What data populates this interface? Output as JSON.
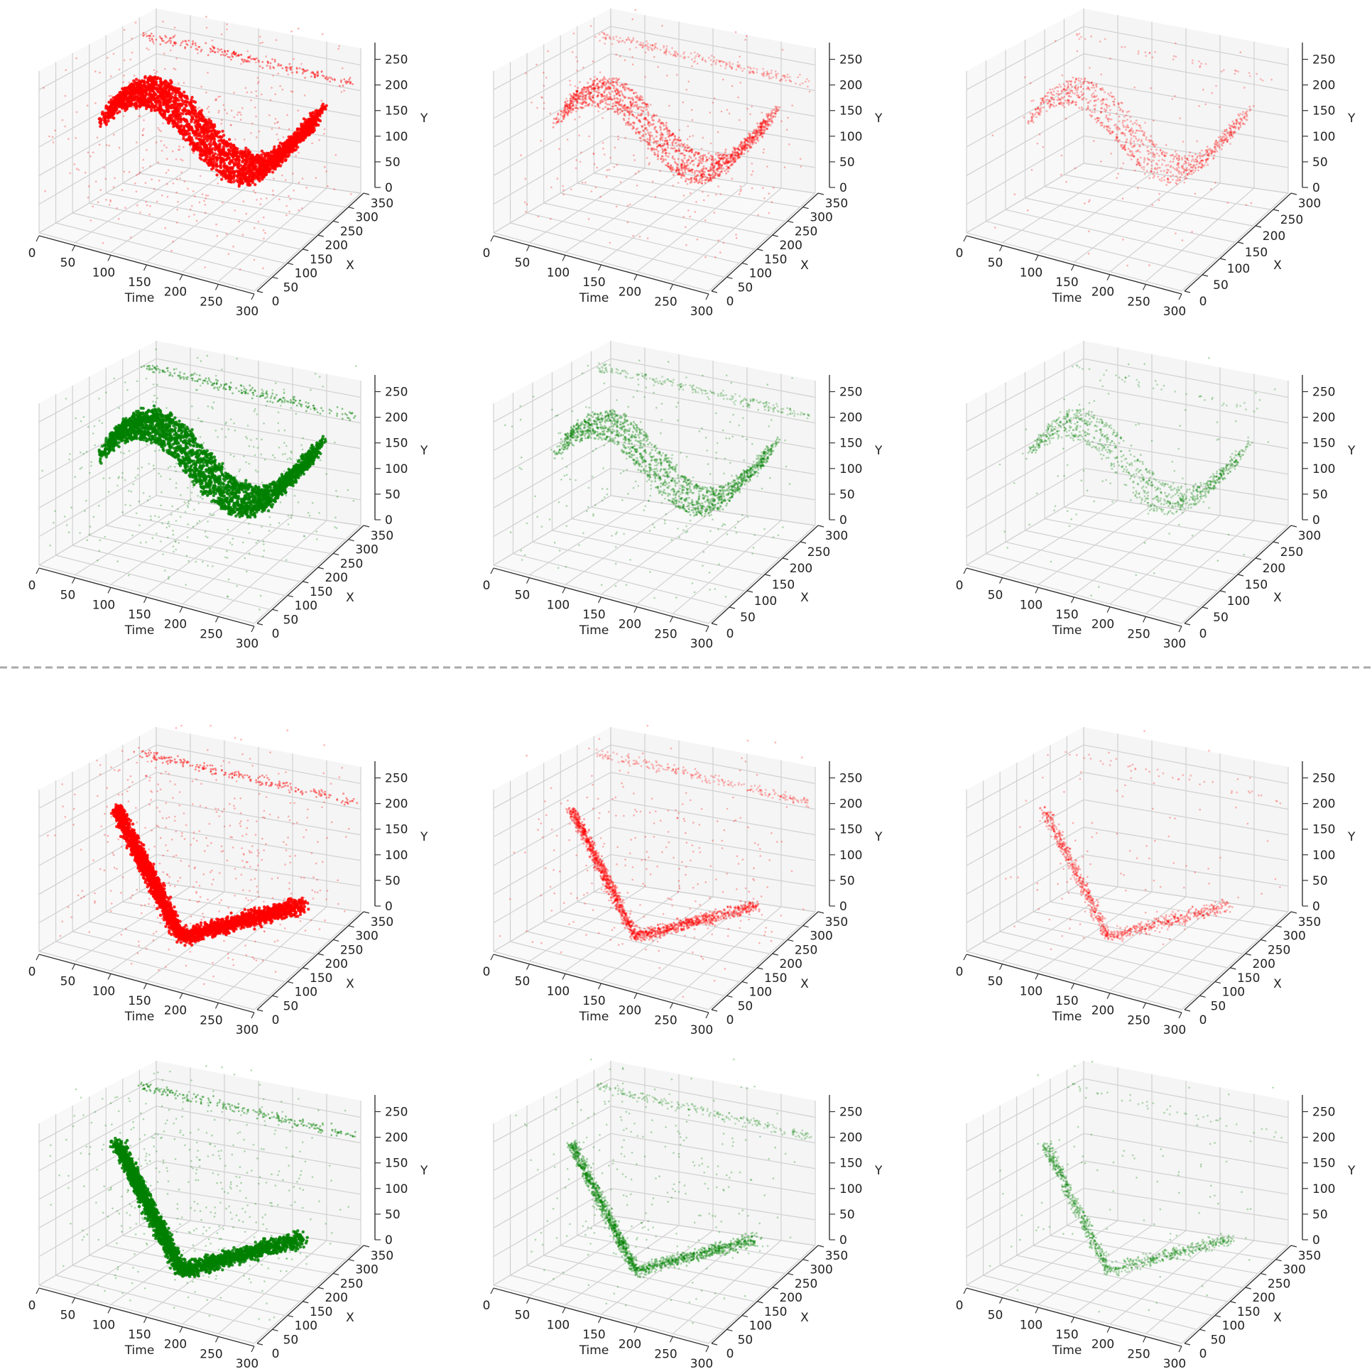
{
  "chart_data": [
    {
      "type": "scatter3d",
      "color": "#ff0000",
      "density": "dense",
      "shape": "wave",
      "xlabel": "Time",
      "ylabel": "X",
      "zlabel": "Y",
      "time_ticks": [
        0,
        50,
        100,
        150,
        200,
        250,
        300
      ],
      "x_ticks": [
        0,
        50,
        100,
        150,
        200,
        250,
        300,
        350
      ],
      "y_ticks": [
        0,
        50,
        100,
        150,
        200,
        250
      ],
      "time_range": [
        0,
        300
      ],
      "x_range": [
        0,
        350
      ],
      "y_range": [
        0,
        260
      ],
      "grid": true
    },
    {
      "type": "scatter3d",
      "color": "#ff0000",
      "density": "medium",
      "shape": "wave",
      "xlabel": "Time",
      "ylabel": "X",
      "zlabel": "Y",
      "time_ticks": [
        0,
        50,
        100,
        150,
        200,
        250,
        300
      ],
      "x_ticks": [
        0,
        50,
        100,
        150,
        200,
        250,
        300,
        350
      ],
      "y_ticks": [
        0,
        50,
        100,
        150,
        200,
        250
      ],
      "time_range": [
        0,
        300
      ],
      "x_range": [
        0,
        350
      ],
      "y_range": [
        0,
        260
      ],
      "grid": true
    },
    {
      "type": "scatter3d",
      "color": "#ff0000",
      "density": "sparse",
      "shape": "wave",
      "xlabel": "Time",
      "ylabel": "X",
      "zlabel": "Y",
      "time_ticks": [
        0,
        50,
        100,
        150,
        200,
        250,
        300
      ],
      "x_ticks": [
        0,
        50,
        100,
        150,
        200,
        250,
        300
      ],
      "y_ticks": [
        0,
        50,
        100,
        150,
        200,
        250
      ],
      "time_range": [
        0,
        300
      ],
      "x_range": [
        0,
        300
      ],
      "y_range": [
        0,
        260
      ],
      "grid": true
    },
    {
      "type": "scatter3d",
      "color": "#008000",
      "density": "dense",
      "shape": "wave",
      "xlabel": "Time",
      "ylabel": "X",
      "zlabel": "Y",
      "time_ticks": [
        0,
        50,
        100,
        150,
        200,
        250,
        300
      ],
      "x_ticks": [
        0,
        50,
        100,
        150,
        200,
        250,
        300,
        350
      ],
      "y_ticks": [
        0,
        50,
        100,
        150,
        200,
        250
      ],
      "time_range": [
        0,
        300
      ],
      "x_range": [
        0,
        350
      ],
      "y_range": [
        0,
        260
      ],
      "grid": true
    },
    {
      "type": "scatter3d",
      "color": "#008000",
      "density": "medium",
      "shape": "wave",
      "xlabel": "Time",
      "ylabel": "X",
      "zlabel": "Y",
      "time_ticks": [
        0,
        50,
        100,
        150,
        200,
        250,
        300
      ],
      "x_ticks": [
        0,
        50,
        100,
        150,
        200,
        250,
        300
      ],
      "y_ticks": [
        0,
        50,
        100,
        150,
        200,
        250
      ],
      "time_range": [
        0,
        300
      ],
      "x_range": [
        0,
        300
      ],
      "y_range": [
        0,
        260
      ],
      "grid": true
    },
    {
      "type": "scatter3d",
      "color": "#008000",
      "density": "sparse",
      "shape": "wave",
      "xlabel": "Time",
      "ylabel": "X",
      "zlabel": "Y",
      "time_ticks": [
        0,
        50,
        100,
        150,
        200,
        250,
        300
      ],
      "x_ticks": [
        0,
        50,
        100,
        150,
        200,
        250,
        300
      ],
      "y_ticks": [
        0,
        50,
        100,
        150,
        200,
        250
      ],
      "time_range": [
        0,
        300
      ],
      "x_range": [
        0,
        300
      ],
      "y_range": [
        0,
        260
      ],
      "grid": true
    },
    {
      "type": "scatter3d",
      "color": "#ff0000",
      "density": "dense",
      "shape": "descent",
      "xlabel": "Time",
      "ylabel": "X",
      "zlabel": "Y",
      "time_ticks": [
        0,
        50,
        100,
        150,
        200,
        250,
        300
      ],
      "x_ticks": [
        0,
        50,
        100,
        150,
        200,
        250,
        300,
        350
      ],
      "y_ticks": [
        0,
        50,
        100,
        150,
        200,
        250
      ],
      "time_range": [
        0,
        300
      ],
      "x_range": [
        0,
        350
      ],
      "y_range": [
        0,
        260
      ],
      "grid": true
    },
    {
      "type": "scatter3d",
      "color": "#ff0000",
      "density": "medium",
      "shape": "descent",
      "xlabel": "Time",
      "ylabel": "X",
      "zlabel": "Y",
      "time_ticks": [
        0,
        50,
        100,
        150,
        200,
        250,
        300
      ],
      "x_ticks": [
        0,
        50,
        100,
        150,
        200,
        250,
        300,
        350
      ],
      "y_ticks": [
        0,
        50,
        100,
        150,
        200,
        250
      ],
      "time_range": [
        0,
        300
      ],
      "x_range": [
        0,
        350
      ],
      "y_range": [
        0,
        260
      ],
      "grid": true
    },
    {
      "type": "scatter3d",
      "color": "#ff0000",
      "density": "sparse",
      "shape": "descent",
      "xlabel": "Time",
      "ylabel": "X",
      "zlabel": "Y",
      "time_ticks": [
        0,
        50,
        100,
        150,
        200,
        250,
        300
      ],
      "x_ticks": [
        0,
        50,
        100,
        150,
        200,
        250,
        300,
        350
      ],
      "y_ticks": [
        0,
        50,
        100,
        150,
        200,
        250
      ],
      "time_range": [
        0,
        300
      ],
      "x_range": [
        0,
        350
      ],
      "y_range": [
        0,
        260
      ],
      "grid": true
    },
    {
      "type": "scatter3d",
      "color": "#008000",
      "density": "dense",
      "shape": "descent",
      "xlabel": "Time",
      "ylabel": "X",
      "zlabel": "Y",
      "time_ticks": [
        0,
        50,
        100,
        150,
        200,
        250,
        300
      ],
      "x_ticks": [
        0,
        50,
        100,
        150,
        200,
        250,
        300,
        350
      ],
      "y_ticks": [
        0,
        50,
        100,
        150,
        200,
        250
      ],
      "time_range": [
        0,
        300
      ],
      "x_range": [
        0,
        350
      ],
      "y_range": [
        0,
        260
      ],
      "grid": true
    },
    {
      "type": "scatter3d",
      "color": "#008000",
      "density": "medium",
      "shape": "descent",
      "xlabel": "Time",
      "ylabel": "X",
      "zlabel": "Y",
      "time_ticks": [
        0,
        50,
        100,
        150,
        200,
        250,
        300
      ],
      "x_ticks": [
        0,
        50,
        100,
        150,
        200,
        250,
        300,
        350
      ],
      "y_ticks": [
        0,
        50,
        100,
        150,
        200,
        250
      ],
      "time_range": [
        0,
        300
      ],
      "x_range": [
        0,
        350
      ],
      "y_range": [
        0,
        260
      ],
      "grid": true
    },
    {
      "type": "scatter3d",
      "color": "#008000",
      "density": "sparse",
      "shape": "descent",
      "xlabel": "Time",
      "ylabel": "X",
      "zlabel": "Y",
      "time_ticks": [
        0,
        50,
        100,
        150,
        200,
        250,
        300
      ],
      "x_ticks": [
        0,
        50,
        100,
        150,
        200,
        250,
        300,
        350
      ],
      "y_ticks": [
        0,
        50,
        100,
        150,
        200,
        250
      ],
      "time_range": [
        0,
        300
      ],
      "x_range": [
        0,
        350
      ],
      "y_range": [
        0,
        260
      ],
      "grid": true
    }
  ]
}
